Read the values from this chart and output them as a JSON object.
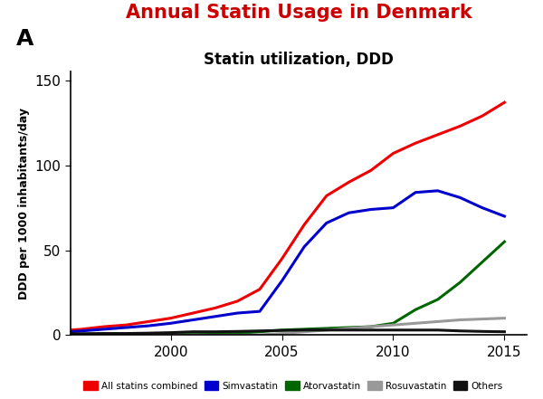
{
  "title": "Annual Statin Usage in Denmark",
  "subtitle": "Statin utilization, DDD",
  "panel_label": "A",
  "ylabel": "DDD per 1000 inhabitants/day",
  "xlim": [
    1995.5,
    2016
  ],
  "ylim": [
    0,
    155
  ],
  "yticks": [
    0,
    50,
    100,
    150
  ],
  "xticks": [
    2000,
    2005,
    2010,
    2015
  ],
  "background_color": "#ffffff",
  "years": [
    1995,
    1996,
    1997,
    1998,
    1999,
    2000,
    2001,
    2002,
    2003,
    2004,
    2005,
    2006,
    2007,
    2008,
    2009,
    2010,
    2011,
    2012,
    2013,
    2014,
    2015
  ],
  "all_statins": [
    2.5,
    3.5,
    5,
    6,
    8,
    10,
    13,
    16,
    20,
    27,
    45,
    65,
    82,
    90,
    97,
    107,
    113,
    118,
    123,
    129,
    137
  ],
  "simvastatin": [
    1.5,
    2.5,
    3.5,
    4.5,
    5.5,
    7,
    9,
    11,
    13,
    14,
    32,
    52,
    66,
    72,
    74,
    75,
    84,
    85,
    81,
    75,
    70
  ],
  "atorvastatin": [
    0,
    0,
    0,
    0,
    0.2,
    0.3,
    0.4,
    0.5,
    1,
    2,
    3,
    3.5,
    4,
    4.5,
    5,
    7,
    15,
    21,
    31,
    43,
    55
  ],
  "rosuvastatin": [
    0,
    0,
    0,
    0,
    0,
    0,
    0,
    0,
    0,
    0.2,
    1,
    2,
    3,
    4,
    5,
    6,
    7,
    8,
    9,
    9.5,
    10
  ],
  "others": [
    0.8,
    0.9,
    1,
    1,
    1.2,
    1.5,
    2,
    2,
    2.2,
    2.5,
    2.8,
    3,
    3,
    3,
    3,
    3,
    3,
    3,
    2.5,
    2.2,
    2
  ],
  "colors": {
    "all_statins": "#ee0000",
    "simvastatin": "#0000cc",
    "atorvastatin": "#006600",
    "rosuvastatin": "#999999",
    "others": "#111111"
  },
  "legend_labels": [
    "All statins combined",
    "Simvastatin",
    "Atorvastatin",
    "Rosuvastatin",
    "Others"
  ],
  "legend_colors": [
    "#ee0000",
    "#0000cc",
    "#006600",
    "#999999",
    "#111111"
  ],
  "title_color": "#cc0000",
  "title_fontsize": 15,
  "subtitle_fontsize": 12,
  "linewidth": 2.2
}
